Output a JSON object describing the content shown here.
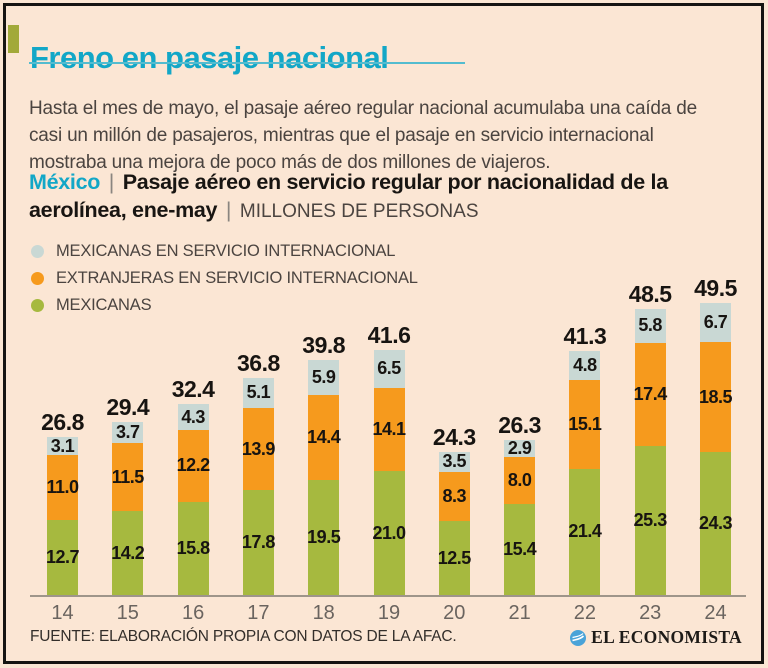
{
  "header": {
    "title": "Freno en pasaje nacional",
    "intro": "Hasta el mes de mayo, el pasaje aéreo regular nacional acumulaba una caída de casi un millón de pasajeros, mientras que el pasaje en servicio internacional mostraba una mejora de poco más de dos millones de viajeros."
  },
  "subtitle": {
    "region": "México",
    "separator": "|",
    "title": "Pasaje aéreo en servicio regular por nacionalidad de la aerolínea, ene-may",
    "units": "MILLONES DE PERSONAS"
  },
  "legend": {
    "items": [
      {
        "label": "MEXICANAS EN SERVICIO INTERNACIONAL",
        "color": "#c9d8d4"
      },
      {
        "label": "EXTRANJERAS EN SERVICIO INTERNACIONAL",
        "color": "#f69a1d"
      },
      {
        "label": "MEXICANAS",
        "color": "#a6b93f"
      }
    ]
  },
  "chart_data": {
    "type": "bar",
    "stacked": true,
    "title": "Pasaje aéreo en servicio regular por nacionalidad de la aerolínea, ene-may",
    "ylabel": "MILLONES DE PERSONAS",
    "xlabel": "",
    "grid": false,
    "legend_position": "top-left",
    "categories": [
      "14",
      "15",
      "16",
      "17",
      "18",
      "19",
      "20",
      "21",
      "22",
      "23",
      "24"
    ],
    "series": [
      {
        "name": "MEXICANAS",
        "color": "#a6b93f",
        "values": [
          12.7,
          14.2,
          15.8,
          17.8,
          19.5,
          21.0,
          12.5,
          15.4,
          21.4,
          25.3,
          24.3
        ]
      },
      {
        "name": "EXTRANJERAS EN SERVICIO INTERNACIONAL",
        "color": "#f69a1d",
        "values": [
          11.0,
          11.5,
          12.2,
          13.9,
          14.4,
          14.1,
          8.3,
          8.0,
          15.1,
          17.4,
          18.5
        ]
      },
      {
        "name": "MEXICANAS EN SERVICIO INTERNACIONAL",
        "color": "#c9d8d4",
        "values": [
          3.1,
          3.7,
          4.3,
          5.1,
          5.9,
          6.5,
          3.5,
          2.9,
          4.8,
          5.8,
          6.7
        ]
      }
    ],
    "totals": [
      26.8,
      29.4,
      32.4,
      36.8,
      39.8,
      41.6,
      24.3,
      26.3,
      41.3,
      48.5,
      49.5
    ]
  },
  "footer": {
    "source": "FUENTE: ELABORACIÓN PROPIA CON DATOS DE LA AFAC.",
    "brand": "EL ECONOMISTA"
  },
  "colors": {
    "background": "#fbe6d4",
    "frame": "#161412",
    "accent_cyan": "#12a7c7",
    "accent_olive": "#a2a93a",
    "axis_line": "#9e958a"
  }
}
